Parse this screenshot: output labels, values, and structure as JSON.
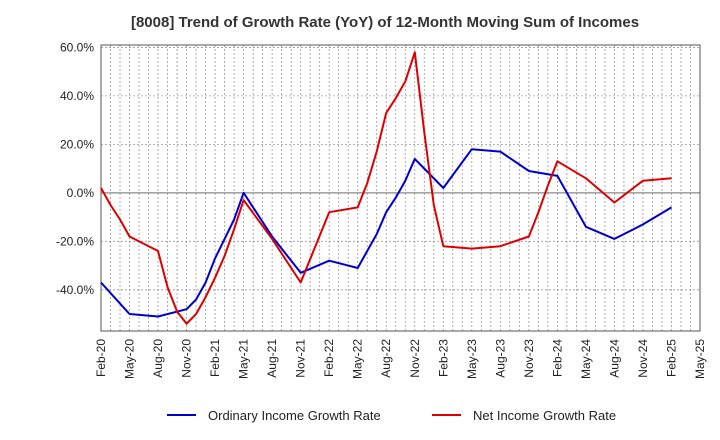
{
  "chart_data": {
    "type": "line",
    "title": "[8008]  Trend of Growth Rate (YoY) of 12-Month Moving Sum of Incomes",
    "xlabel": "",
    "ylabel": "",
    "ylim": [
      -57,
      61
    ],
    "y_ticks": [
      "60.0%",
      "40.0%",
      "20.0%",
      "0.0%",
      "-20.0%",
      "-40.0%"
    ],
    "y_tick_values": [
      60,
      40,
      20,
      0,
      -20,
      -40
    ],
    "x_tick_labels": [
      "Feb-20",
      "May-20",
      "Aug-20",
      "Nov-20",
      "Feb-21",
      "May-21",
      "Aug-21",
      "Nov-21",
      "Feb-22",
      "May-22",
      "Aug-22",
      "Nov-22",
      "Feb-23",
      "May-23",
      "Aug-23",
      "Nov-23",
      "Feb-24",
      "May-24",
      "Aug-24",
      "Nov-24",
      "Feb-25",
      "May-25"
    ],
    "x_months": [
      "2020-02",
      "2020-03",
      "2020-04",
      "2020-05",
      "2020-06",
      "2020-07",
      "2020-08",
      "2020-09",
      "2020-10",
      "2020-11",
      "2020-12",
      "2021-01",
      "2021-02",
      "2021-03",
      "2021-04",
      "2021-05",
      "2021-06",
      "2021-07",
      "2021-08",
      "2021-09",
      "2021-10",
      "2021-11",
      "2021-12",
      "2022-01",
      "2022-02",
      "2022-03",
      "2022-04",
      "2022-05",
      "2022-06",
      "2022-07",
      "2022-08",
      "2022-09",
      "2022-10",
      "2022-11",
      "2022-12",
      "2023-01",
      "2023-02",
      "2023-03",
      "2023-04",
      "2023-05",
      "2023-06",
      "2023-07",
      "2023-08",
      "2023-09",
      "2023-10",
      "2023-11",
      "2023-12",
      "2024-01",
      "2024-02",
      "2024-03",
      "2024-04",
      "2024-05",
      "2024-06",
      "2024-07",
      "2024-08",
      "2024-09",
      "2024-10",
      "2024-11",
      "2024-12",
      "2025-01",
      "2025-02",
      "2025-03",
      "2025-04",
      "2025-05"
    ],
    "grid": true,
    "legend_position": "bottom",
    "series": [
      {
        "name": "Ordinary Income Growth Rate",
        "color": "#0000cc",
        "points": [
          [
            "2020-02",
            -37
          ],
          [
            "2020-05",
            -50
          ],
          [
            "2020-08",
            -51
          ],
          [
            "2020-11",
            -48
          ],
          [
            "2020-12",
            -44
          ],
          [
            "2021-01",
            -37
          ],
          [
            "2021-02",
            -27
          ],
          [
            "2021-03",
            -19
          ],
          [
            "2021-04",
            -11
          ],
          [
            "2021-05",
            0
          ],
          [
            "2021-08",
            -18
          ],
          [
            "2021-11",
            -33
          ],
          [
            "2022-02",
            -28
          ],
          [
            "2022-05",
            -31
          ],
          [
            "2022-06",
            -24
          ],
          [
            "2022-07",
            -17
          ],
          [
            "2022-08",
            -8
          ],
          [
            "2022-09",
            -2
          ],
          [
            "2022-10",
            5
          ],
          [
            "2022-11",
            14
          ],
          [
            "2023-02",
            2
          ],
          [
            "2023-05",
            18
          ],
          [
            "2023-08",
            17
          ],
          [
            "2023-11",
            9
          ],
          [
            "2024-02",
            7
          ],
          [
            "2024-05",
            -14
          ],
          [
            "2024-08",
            -19
          ],
          [
            "2024-11",
            -13
          ],
          [
            "2025-02",
            -6
          ]
        ]
      },
      {
        "name": "Net Income Growth Rate",
        "color": "#dd0000",
        "points": [
          [
            "2020-02",
            2
          ],
          [
            "2020-03",
            -5
          ],
          [
            "2020-04",
            -11
          ],
          [
            "2020-05",
            -18
          ],
          [
            "2020-08",
            -24
          ],
          [
            "2020-09",
            -39
          ],
          [
            "2020-10",
            -49
          ],
          [
            "2020-11",
            -54
          ],
          [
            "2020-12",
            -50
          ],
          [
            "2021-01",
            -43
          ],
          [
            "2021-02",
            -35
          ],
          [
            "2021-03",
            -26
          ],
          [
            "2021-04",
            -15
          ],
          [
            "2021-05",
            -3
          ],
          [
            "2021-08",
            -19
          ],
          [
            "2021-11",
            -37
          ],
          [
            "2022-02",
            -8
          ],
          [
            "2022-05",
            -6
          ],
          [
            "2022-06",
            4
          ],
          [
            "2022-07",
            17
          ],
          [
            "2022-08",
            33
          ],
          [
            "2022-09",
            39
          ],
          [
            "2022-10",
            46
          ],
          [
            "2022-11",
            58
          ],
          [
            "2022-12",
            25
          ],
          [
            "2023-01",
            -5
          ],
          [
            "2023-02",
            -22
          ],
          [
            "2023-05",
            -23
          ],
          [
            "2023-08",
            -22
          ],
          [
            "2023-11",
            -18
          ],
          [
            "2023-12",
            -8
          ],
          [
            "2024-01",
            3
          ],
          [
            "2024-02",
            13
          ],
          [
            "2024-05",
            6
          ],
          [
            "2024-08",
            -4
          ],
          [
            "2024-11",
            5
          ],
          [
            "2025-02",
            6
          ]
        ]
      }
    ]
  }
}
